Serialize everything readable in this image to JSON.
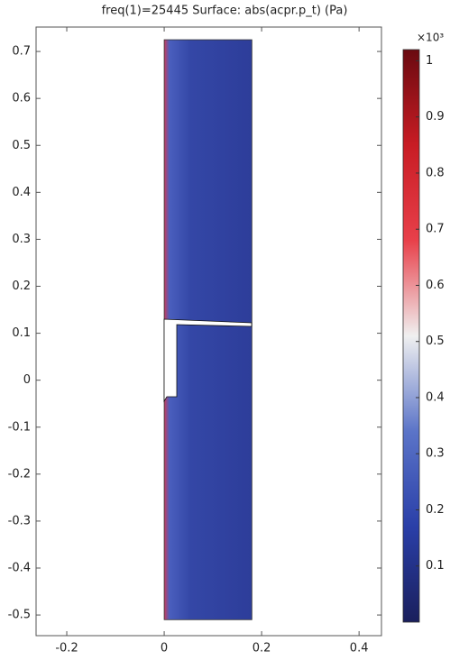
{
  "chart_data": {
    "type": "surface",
    "title": "freq(1)=25445   Surface: abs(acpr.p_t) (Pa)",
    "xlim": [
      -0.263,
      0.446
    ],
    "ylim": [
      -0.544,
      0.752
    ],
    "xticks": [
      -0.2,
      0,
      0.2,
      0.4
    ],
    "yticks": [
      -0.5,
      -0.4,
      -0.3,
      -0.2,
      -0.1,
      0,
      0.1,
      0.2,
      0.3,
      0.4,
      0.5,
      0.6,
      0.7
    ],
    "domain": {
      "x": [
        0,
        0.18
      ],
      "y": [
        -0.51,
        0.725
      ]
    },
    "colorbar": {
      "multiplier": "×10³",
      "clim": [
        0,
        1.02
      ],
      "ticks": [
        0.1,
        0.2,
        0.3,
        0.4,
        0.5,
        0.6,
        0.7,
        0.8,
        0.9,
        1
      ],
      "colormap": [
        "#1a1f5c",
        "#2a3fa8",
        "#5b74c8",
        "#f0f0f0",
        "#e8404a",
        "#c81c24",
        "#6a0a10"
      ]
    }
  }
}
